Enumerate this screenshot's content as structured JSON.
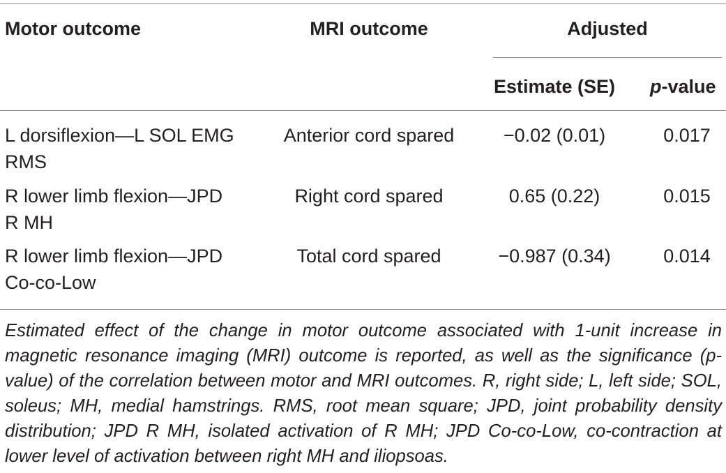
{
  "table": {
    "headers": {
      "motor_outcome": "Motor outcome",
      "mri_outcome": "MRI outcome",
      "adjusted": "Adjusted",
      "estimate_se": "Estimate (SE)",
      "p_value_italic": "p",
      "p_value_rest": "-value"
    },
    "rows": [
      {
        "motor_line1": "L dorsiflexion—L SOL EMG",
        "motor_line2": "RMS",
        "mri": "Anterior cord spared",
        "estimate": "−0.02 (0.01)",
        "p": "0.017"
      },
      {
        "motor_line1": "R lower limb flexion—JPD",
        "motor_line2": "R MH",
        "mri": "Right cord spared",
        "estimate": "0.65 (0.22)",
        "p": "0.015"
      },
      {
        "motor_line1": "R lower limb flexion—JPD",
        "motor_line2": "Co-co-Low",
        "mri": "Total cord spared",
        "estimate": "−0.987 (0.34)",
        "p": "0.014"
      }
    ],
    "footnote": "Estimated effect of the change in motor outcome associated with 1-unit increase in magnetic resonance imaging (MRI) outcome is reported, as well as the significance (p-value) of the correlation between motor and MRI outcomes. R, right side; L, left side; SOL, soleus; MH, medial hamstrings. RMS, root mean square; JPD, joint probability density distribution; JPD R MH, isolated activation of R MH; JPD Co-co-Low, co-contraction at lower level of activation between right MH and iliopsoas."
  }
}
